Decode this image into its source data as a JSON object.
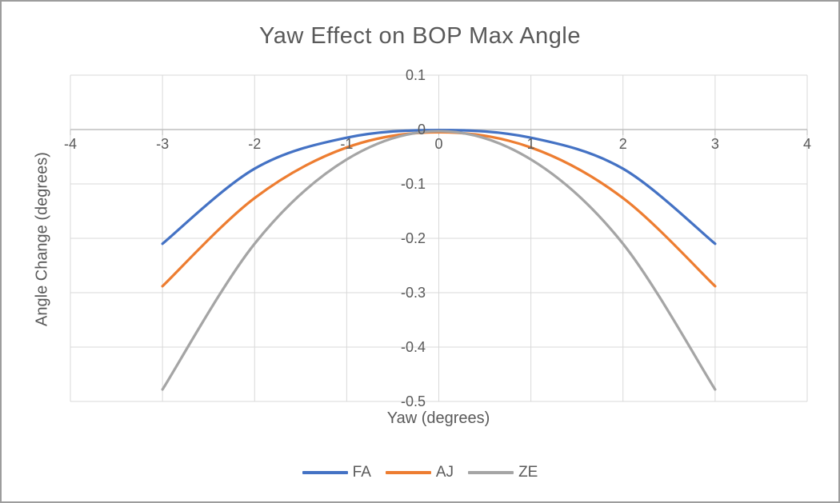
{
  "window": {
    "background": "#ffffff",
    "border_color": "#9d9d9d"
  },
  "chart_data": {
    "type": "line",
    "title": "Yaw Effect on BOP Max Angle",
    "xlabel": "Yaw (degrees)",
    "ylabel": "Angle Change (degrees)",
    "x": [
      -3,
      -2,
      -1,
      0,
      1,
      2,
      3
    ],
    "series": [
      {
        "name": "FA",
        "color": "#4472C4",
        "values": [
          -0.21,
          -0.072,
          -0.015,
          -0.001,
          -0.015,
          -0.072,
          -0.21
        ]
      },
      {
        "name": "AJ",
        "color": "#ED7D31",
        "values": [
          -0.288,
          -0.126,
          -0.033,
          -0.005,
          -0.033,
          -0.126,
          -0.288
        ]
      },
      {
        "name": "ZE",
        "color": "#A5A5A5",
        "values": [
          -0.478,
          -0.21,
          -0.055,
          -0.003,
          -0.055,
          -0.21,
          -0.478
        ]
      }
    ],
    "xlim": [
      -4,
      4
    ],
    "ylim": [
      -0.5,
      0.1
    ],
    "x_ticks": [
      -4,
      -3,
      -2,
      -1,
      0,
      1,
      2,
      3,
      4
    ],
    "y_ticks": [
      0.1,
      0,
      -0.1,
      -0.2,
      -0.3,
      -0.4,
      -0.5
    ],
    "grid": true,
    "smooth_lines": true,
    "legend_position": "bottom",
    "styles": {
      "gridline_color": "#D9D9D9",
      "axis_color": "#BFBFBF",
      "text_color": "#595959",
      "line_width": 3.25
    }
  }
}
